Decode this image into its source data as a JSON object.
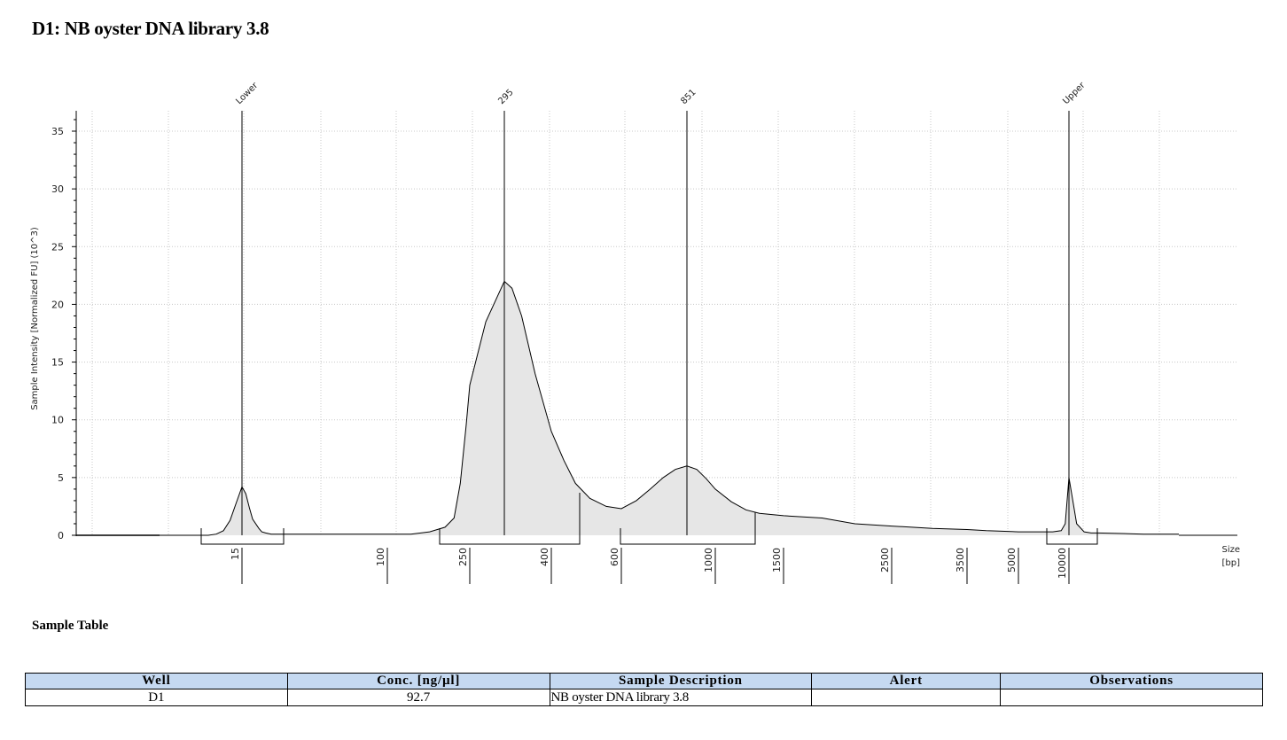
{
  "title": "D1: NB oyster DNA library 3.8",
  "chart_data": {
    "type": "line",
    "ylabel": "Sample Intensity [Normalized FU] (10^3)",
    "xlabel": [
      "Size",
      "[bp]"
    ],
    "ylim": [
      0,
      37
    ],
    "y_ticks": [
      0,
      5,
      10,
      15,
      20,
      25,
      30,
      35
    ],
    "x_ticks": [
      "15",
      "100",
      "250",
      "400",
      "600",
      "1000",
      "1500",
      "2500",
      "3500",
      "5000",
      "10000"
    ],
    "grid": true,
    "fill": "#e6e6e6",
    "peaks": [
      {
        "label": "Lower",
        "size_bp": 15
      },
      {
        "label": "295",
        "size_bp": 295
      },
      {
        "label": "851",
        "size_bp": 851
      },
      {
        "label": "Upper",
        "size_bp": 10000
      }
    ],
    "series": [
      {
        "size_bp": [
          5,
          8,
          10,
          11,
          12,
          13,
          14,
          15,
          16,
          17,
          18,
          20,
          22,
          25,
          30,
          40,
          60,
          100,
          130,
          160,
          190,
          210,
          225,
          240,
          250,
          270,
          295,
          310,
          330,
          360,
          400,
          430,
          460,
          500,
          550,
          600,
          650,
          700,
          750,
          800,
          851,
          900,
          950,
          1000,
          1100,
          1200,
          1300,
          1500,
          1800,
          2100,
          2500,
          3000,
          3500,
          4000,
          5000,
          6000,
          7000,
          8000,
          9000,
          9500,
          10000,
          10500,
          11000,
          11500,
          12000,
          14000,
          16000,
          20000
        ],
        "intensity": [
          0,
          0,
          0,
          0.1,
          0.4,
          1.3,
          2.8,
          4.2,
          3.6,
          2.4,
          1.4,
          0.6,
          0.3,
          0.2,
          0.1,
          0.1,
          0.1,
          0.1,
          0.1,
          0.3,
          0.7,
          1.5,
          4.5,
          9.5,
          13,
          18.5,
          22,
          21.4,
          19,
          14,
          9,
          6.5,
          4.5,
          3.2,
          2.5,
          2.3,
          3.0,
          4.0,
          5.0,
          5.7,
          6.0,
          5.7,
          4.9,
          4.0,
          2.9,
          2.2,
          1.9,
          1.7,
          1.5,
          1.0,
          0.8,
          0.6,
          0.5,
          0.4,
          0.3,
          0.3,
          0.3,
          0.3,
          0.4,
          1.0,
          5.0,
          1.0,
          0.3,
          0.2,
          0.2,
          0.15,
          0.1,
          0.1
        ]
      }
    ]
  },
  "sample_table": {
    "heading": "Sample Table",
    "columns": [
      "Well",
      "Conc. [ng/µl]",
      "Sample Description",
      "Alert",
      "Observations"
    ],
    "rows": [
      {
        "well": "D1",
        "conc": "92.7",
        "description": "NB oyster DNA library 3.8",
        "alert": "",
        "observations": ""
      }
    ]
  }
}
